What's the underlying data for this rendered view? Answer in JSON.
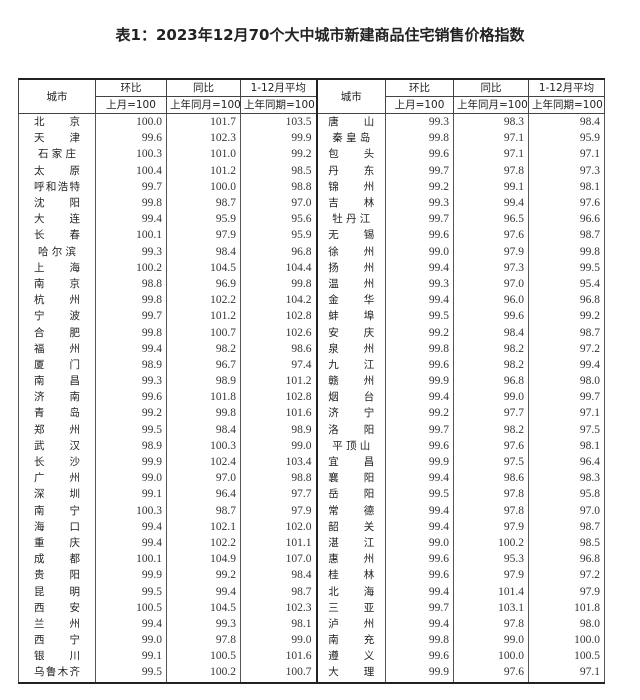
{
  "title": "表1：2023年12月70个大中城市新建商品住宅销售价格指数",
  "headers": {
    "city": "城市",
    "mom": "环比",
    "yoy": "同比",
    "avg": "1-12月平均",
    "mom_base": "上月=100",
    "yoy_base": "上年同月=100",
    "avg_base": "上年同期=100"
  },
  "rows": [
    [
      [
        "北京",
        "100.0",
        "101.7",
        "103.5"
      ],
      [
        "唐山",
        "99.3",
        "98.3",
        "98.4"
      ]
    ],
    [
      [
        "天津",
        "99.6",
        "102.3",
        "99.9"
      ],
      [
        "秦皇岛",
        "99.8",
        "97.1",
        "95.9"
      ]
    ],
    [
      [
        "石家庄",
        "100.3",
        "101.0",
        "99.2"
      ],
      [
        "包头",
        "99.6",
        "97.1",
        "97.1"
      ]
    ],
    [
      [
        "太原",
        "100.4",
        "101.2",
        "98.5"
      ],
      [
        "丹东",
        "99.7",
        "97.8",
        "97.3"
      ]
    ],
    [
      [
        "呼和浩特",
        "99.7",
        "100.0",
        "98.8"
      ],
      [
        "锦州",
        "99.2",
        "99.1",
        "98.1"
      ]
    ],
    [
      [
        "沈阳",
        "99.8",
        "98.7",
        "97.0"
      ],
      [
        "吉林",
        "99.3",
        "99.4",
        "97.6"
      ]
    ],
    [
      [
        "大连",
        "99.4",
        "95.9",
        "95.6"
      ],
      [
        "牡丹江",
        "99.7",
        "96.5",
        "96.6"
      ]
    ],
    [
      [
        "长春",
        "100.1",
        "97.9",
        "95.9"
      ],
      [
        "无锡",
        "99.6",
        "97.6",
        "98.7"
      ]
    ],
    [
      [
        "哈尔滨",
        "99.3",
        "98.4",
        "96.8"
      ],
      [
        "徐州",
        "99.0",
        "97.9",
        "99.8"
      ]
    ],
    [
      [
        "上海",
        "100.2",
        "104.5",
        "104.4"
      ],
      [
        "扬州",
        "99.4",
        "97.3",
        "99.5"
      ]
    ],
    [
      [
        "南京",
        "98.8",
        "96.9",
        "99.8"
      ],
      [
        "温州",
        "99.3",
        "97.0",
        "95.4"
      ]
    ],
    [
      [
        "杭州",
        "99.8",
        "102.2",
        "104.2"
      ],
      [
        "金华",
        "99.4",
        "96.0",
        "96.8"
      ]
    ],
    [
      [
        "宁波",
        "99.7",
        "101.2",
        "102.8"
      ],
      [
        "蚌埠",
        "99.5",
        "99.6",
        "99.2"
      ]
    ],
    [
      [
        "合肥",
        "99.8",
        "100.7",
        "102.6"
      ],
      [
        "安庆",
        "99.2",
        "98.4",
        "98.7"
      ]
    ],
    [
      [
        "福州",
        "99.4",
        "98.2",
        "98.6"
      ],
      [
        "泉州",
        "99.8",
        "98.2",
        "97.2"
      ]
    ],
    [
      [
        "厦门",
        "98.9",
        "96.7",
        "97.4"
      ],
      [
        "九江",
        "99.6",
        "98.2",
        "99.4"
      ]
    ],
    [
      [
        "南昌",
        "99.3",
        "98.9",
        "101.2"
      ],
      [
        "赣州",
        "99.9",
        "96.8",
        "98.0"
      ]
    ],
    [
      [
        "济南",
        "99.6",
        "101.8",
        "102.8"
      ],
      [
        "烟台",
        "99.4",
        "99.0",
        "99.7"
      ]
    ],
    [
      [
        "青岛",
        "99.2",
        "99.8",
        "101.6"
      ],
      [
        "济宁",
        "99.2",
        "97.7",
        "97.1"
      ]
    ],
    [
      [
        "郑州",
        "99.5",
        "98.4",
        "98.9"
      ],
      [
        "洛阳",
        "99.7",
        "98.2",
        "97.5"
      ]
    ],
    [
      [
        "武汉",
        "98.9",
        "100.3",
        "99.0"
      ],
      [
        "平顶山",
        "99.6",
        "97.6",
        "98.1"
      ]
    ],
    [
      [
        "长沙",
        "99.9",
        "102.4",
        "103.4"
      ],
      [
        "宜昌",
        "99.9",
        "97.5",
        "96.4"
      ]
    ],
    [
      [
        "广州",
        "99.0",
        "97.0",
        "98.8"
      ],
      [
        "襄阳",
        "99.4",
        "98.6",
        "98.3"
      ]
    ],
    [
      [
        "深圳",
        "99.1",
        "96.4",
        "97.7"
      ],
      [
        "岳阳",
        "99.5",
        "97.8",
        "95.8"
      ]
    ],
    [
      [
        "南宁",
        "100.3",
        "98.7",
        "97.9"
      ],
      [
        "常德",
        "99.4",
        "97.8",
        "97.0"
      ]
    ],
    [
      [
        "海口",
        "99.4",
        "102.1",
        "102.0"
      ],
      [
        "韶关",
        "99.4",
        "97.9",
        "98.7"
      ]
    ],
    [
      [
        "重庆",
        "99.4",
        "102.2",
        "101.1"
      ],
      [
        "湛江",
        "99.0",
        "100.2",
        "98.5"
      ]
    ],
    [
      [
        "成都",
        "100.1",
        "104.9",
        "107.0"
      ],
      [
        "惠州",
        "99.6",
        "95.3",
        "96.8"
      ]
    ],
    [
      [
        "贵阳",
        "99.9",
        "99.2",
        "98.4"
      ],
      [
        "桂林",
        "99.6",
        "97.9",
        "97.2"
      ]
    ],
    [
      [
        "昆明",
        "99.5",
        "99.4",
        "98.7"
      ],
      [
        "北海",
        "99.4",
        "101.4",
        "97.9"
      ]
    ],
    [
      [
        "西安",
        "100.5",
        "104.5",
        "102.3"
      ],
      [
        "三亚",
        "99.7",
        "103.1",
        "101.8"
      ]
    ],
    [
      [
        "兰州",
        "99.4",
        "99.3",
        "98.1"
      ],
      [
        "泸州",
        "99.4",
        "97.8",
        "98.0"
      ]
    ],
    [
      [
        "西宁",
        "99.0",
        "97.8",
        "99.0"
      ],
      [
        "南充",
        "99.8",
        "99.0",
        "100.0"
      ]
    ],
    [
      [
        "银川",
        "99.1",
        "100.5",
        "101.6"
      ],
      [
        "遵义",
        "99.6",
        "100.0",
        "100.5"
      ]
    ],
    [
      [
        "乌鲁木齐",
        "99.5",
        "100.2",
        "100.7"
      ],
      [
        "大理",
        "99.9",
        "97.6",
        "97.1"
      ]
    ]
  ]
}
